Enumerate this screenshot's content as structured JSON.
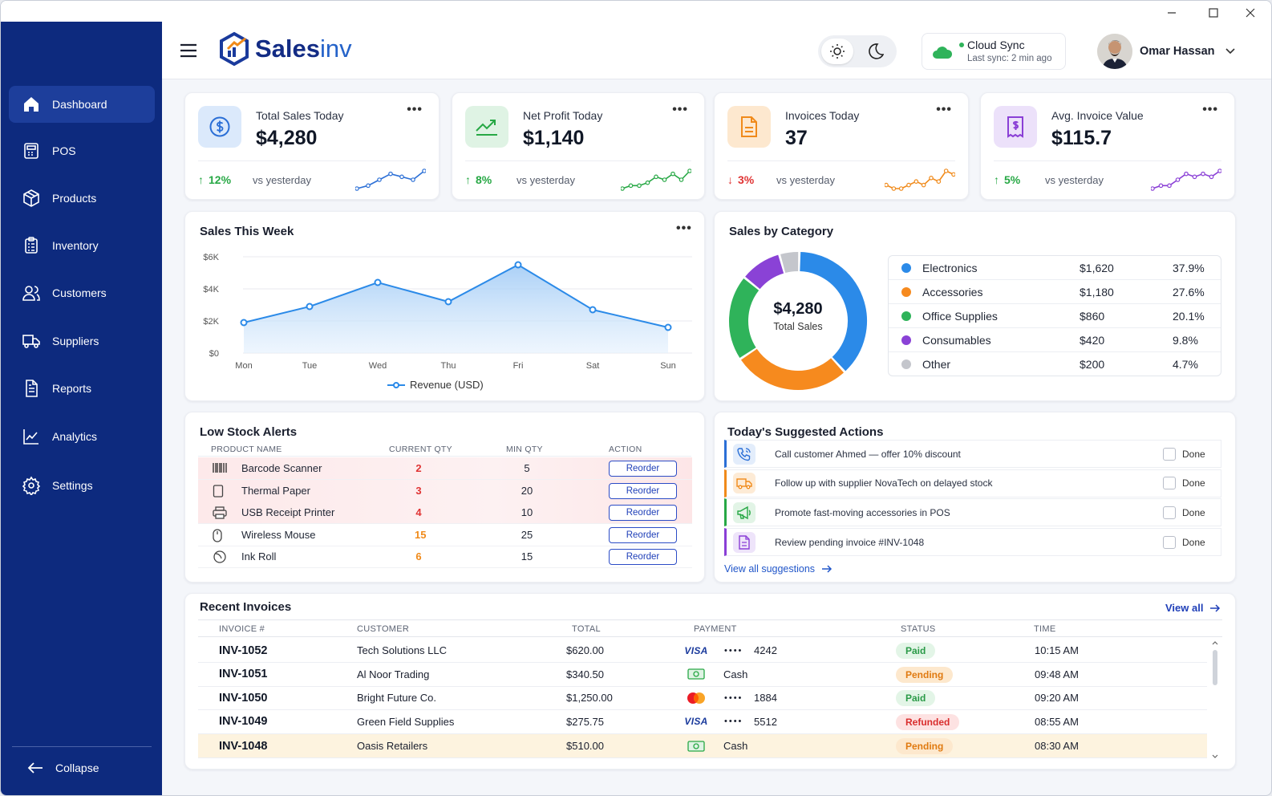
{
  "app": {
    "name_a": "Sales",
    "name_b": "inv"
  },
  "header": {
    "sync_title": "Cloud Sync",
    "sync_sub": "Last sync: 2 min ago",
    "user_name": "Omar Hassan"
  },
  "sidebar": {
    "items": [
      {
        "label": "Dashboard",
        "icon": "home-icon"
      },
      {
        "label": "POS",
        "icon": "pos-icon"
      },
      {
        "label": "Products",
        "icon": "box-icon"
      },
      {
        "label": "Inventory",
        "icon": "clipboard-icon"
      },
      {
        "label": "Customers",
        "icon": "users-icon"
      },
      {
        "label": "Suppliers",
        "icon": "truck-icon"
      },
      {
        "label": "Reports",
        "icon": "report-icon"
      },
      {
        "label": "Analytics",
        "icon": "analytics-icon"
      },
      {
        "label": "Settings",
        "icon": "gear-icon"
      }
    ],
    "collapse_label": "Collapse"
  },
  "kpis": [
    {
      "label": "Total Sales Today",
      "value": "$4,280",
      "trend": "12%",
      "direction": "up",
      "vs": "vs yesterday",
      "color": "#2b6fd6",
      "spark": [
        2,
        3,
        5,
        7,
        6,
        5,
        8
      ]
    },
    {
      "label": "Net Profit Today",
      "value": "$1,140",
      "trend": "8%",
      "direction": "up",
      "vs": "vs yesterday",
      "color": "#27a845",
      "spark": [
        1,
        2,
        2,
        3,
        5,
        4,
        6,
        4,
        7
      ]
    },
    {
      "label": "Invoices Today",
      "value": "37",
      "trend": "3%",
      "direction": "down",
      "vs": "vs yesterday",
      "color": "#f08a1a",
      "spark": [
        3,
        2,
        2,
        3,
        4,
        3,
        5,
        4,
        7,
        6
      ]
    },
    {
      "label": "Avg. Invoice Value",
      "value": "$115.7",
      "trend": "5%",
      "direction": "up",
      "vs": "vs yesterday",
      "color": "#8a3fd6",
      "spark": [
        1,
        2,
        2,
        4,
        6,
        5,
        6,
        5,
        7
      ]
    }
  ],
  "sales_week": {
    "title": "Sales This Week",
    "legend": "Revenue (USD)",
    "chart_data": {
      "type": "area",
      "title": "Sales This Week",
      "categories": [
        "Mon",
        "Tue",
        "Wed",
        "Thu",
        "Fri",
        "Sat",
        "Sun"
      ],
      "y_ticks": [
        "$0",
        "$2K",
        "$4K",
        "$6K"
      ],
      "ylim": [
        0,
        6000
      ],
      "series": [
        {
          "name": "Revenue (USD)",
          "values": [
            1900,
            2900,
            4400,
            3200,
            5500,
            2700,
            1600
          ]
        }
      ],
      "grid": true,
      "legend_position": "bottom"
    }
  },
  "sales_category": {
    "title": "Sales by Category",
    "center_value": "$4,280",
    "center_label": "Total Sales",
    "chart_data": {
      "type": "pie",
      "labels": [
        "Electronics",
        "Accessories",
        "Office Supplies",
        "Consumables",
        "Other"
      ],
      "values": [
        37.9,
        27.6,
        20.1,
        9.8,
        4.7
      ],
      "colors": [
        "#2b8ae8",
        "#f68a1e",
        "#2fb35a",
        "#8a42d6",
        "#c4c6cc"
      ]
    },
    "rows": [
      {
        "name": "Electronics",
        "amount": "$1,620",
        "pct": "37.9%"
      },
      {
        "name": "Accessories",
        "amount": "$1,180",
        "pct": "27.6%"
      },
      {
        "name": "Office Supplies",
        "amount": "$860",
        "pct": "20.1%"
      },
      {
        "name": "Consumables",
        "amount": "$420",
        "pct": "9.8%"
      },
      {
        "name": "Other",
        "amount": "$200",
        "pct": "4.7%"
      }
    ]
  },
  "low_stock": {
    "title": "Low Stock Alerts",
    "headers": [
      "PRODUCT NAME",
      "CURRENT QTY",
      "MIN QTY",
      "ACTION"
    ],
    "rows": [
      {
        "name": "Barcode Scanner",
        "icon": "barcode-icon",
        "current": "2",
        "min": "5",
        "action": "Reorder",
        "level": "critical"
      },
      {
        "name": "Thermal Paper",
        "icon": "paper-icon",
        "current": "3",
        "min": "20",
        "action": "Reorder",
        "level": "critical"
      },
      {
        "name": "USB Receipt Printer",
        "icon": "printer-icon",
        "current": "4",
        "min": "10",
        "action": "Reorder",
        "level": "critical"
      },
      {
        "name": "Wireless Mouse",
        "icon": "mouse-icon",
        "current": "15",
        "min": "25",
        "action": "Reorder",
        "level": "warning"
      },
      {
        "name": "Ink Roll",
        "icon": "ink-roll-icon",
        "current": "6",
        "min": "15",
        "action": "Reorder",
        "level": "warning"
      }
    ]
  },
  "suggested": {
    "title": "Today's Suggested Actions",
    "view_all": "View all suggestions",
    "rows": [
      {
        "text": "Call customer Ahmed — offer 10% discount",
        "icon": "phone-icon",
        "color": "#2b6fd6",
        "done": "Done"
      },
      {
        "text": "Follow up with supplier NovaTech on delayed stock",
        "icon": "truck-icon",
        "color": "#f08a1a",
        "done": "Done"
      },
      {
        "text": "Promote fast-moving accessories in POS",
        "icon": "megaphone-icon",
        "color": "#27a845",
        "done": "Done"
      },
      {
        "text": "Review pending invoice #INV-1048",
        "icon": "document-icon",
        "color": "#8a3fd6",
        "done": "Done"
      }
    ]
  },
  "invoices": {
    "title": "Recent Invoices",
    "view_all": "View all",
    "headers": [
      "INVOICE #",
      "CUSTOMER",
      "TOTAL",
      "PAYMENT",
      "STATUS",
      "TIME"
    ],
    "rows": [
      {
        "id": "INV-1052",
        "customer": "Tech Solutions LLC",
        "total": "$620.00",
        "method": "visa",
        "payment": "4242",
        "status": "Paid",
        "time": "10:15 AM"
      },
      {
        "id": "INV-1051",
        "customer": "Al Noor Trading",
        "total": "$340.50",
        "method": "cash",
        "payment": "Cash",
        "status": "Pending",
        "time": "09:48 AM"
      },
      {
        "id": "INV-1050",
        "customer": "Bright Future Co.",
        "total": "$1,250.00",
        "method": "mastercard",
        "payment": "1884",
        "status": "Paid",
        "time": "09:20 AM"
      },
      {
        "id": "INV-1049",
        "customer": "Green Field Supplies",
        "total": "$275.75",
        "method": "visa",
        "payment": "5512",
        "status": "Refunded",
        "time": "08:55 AM"
      },
      {
        "id": "INV-1048",
        "customer": "Oasis Retailers",
        "total": "$510.00",
        "method": "cash",
        "payment": "Cash",
        "status": "Pending",
        "time": "08:30 AM"
      }
    ],
    "visa_label": "VISA",
    "mask": "••••"
  }
}
